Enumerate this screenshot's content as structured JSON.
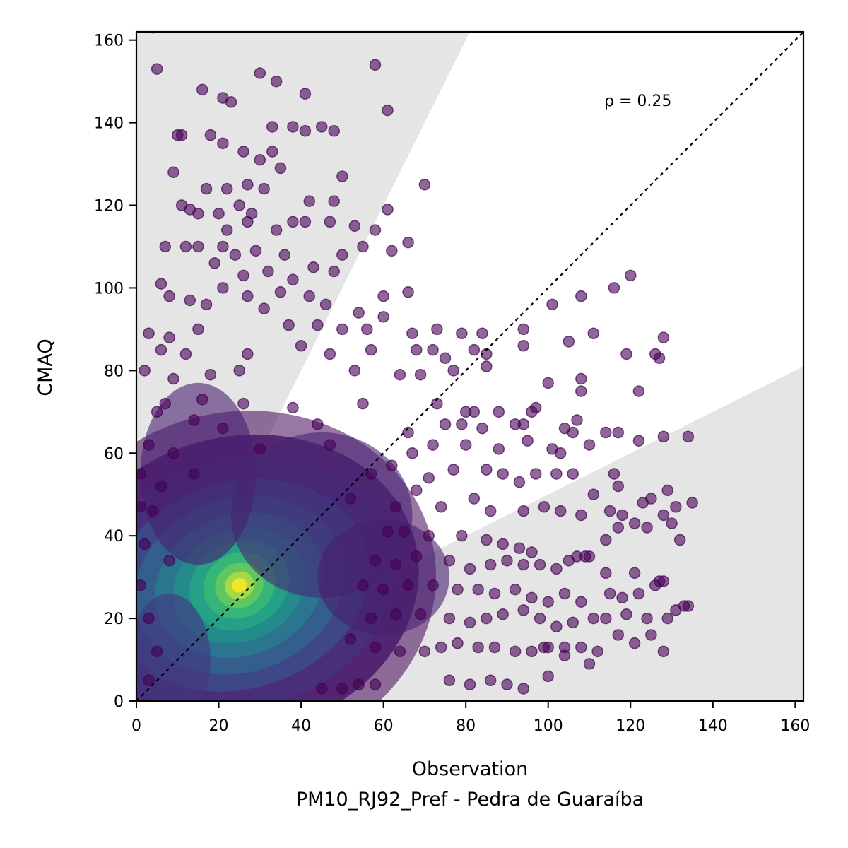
{
  "chart_data": {
    "type": "scatter",
    "title": "",
    "xlabel": "Observation",
    "subtitle": "PM10_RJ92_Pref - Pedra de Guaraíba",
    "ylabel": "CMAQ",
    "xlim": [
      0,
      162
    ],
    "ylim": [
      0,
      162
    ],
    "xticks": [
      0,
      20,
      40,
      60,
      80,
      100,
      120,
      140,
      160
    ],
    "yticks": [
      0,
      20,
      40,
      60,
      80,
      100,
      120,
      140,
      160
    ],
    "xtick_labels": [
      "0",
      "20",
      "40",
      "60",
      "80",
      "100",
      "120",
      "140",
      "160"
    ],
    "ytick_labels": [
      "0",
      "20",
      "40",
      "60",
      "80",
      "100",
      "120",
      "140",
      "160"
    ],
    "grid": false,
    "annotation": "ρ = 0.25",
    "reference_line": "1:1 dashed",
    "shaded_regions": "outside factor-of-2 band (y > 2x and y < x/2)",
    "colormap": "viridis (point density)",
    "density_peak": {
      "x": 25,
      "y": 28
    },
    "colors": {
      "shade": "#e5e5e5",
      "low_density": "#440154",
      "mid_density": "#21918c",
      "high_density": "#fde725"
    },
    "points": [
      [
        4,
        163
      ],
      [
        5,
        153
      ],
      [
        30,
        152
      ],
      [
        34,
        150
      ],
      [
        58,
        154
      ],
      [
        41,
        147
      ],
      [
        61,
        143
      ],
      [
        16,
        148
      ],
      [
        21,
        146
      ],
      [
        23,
        145
      ],
      [
        10,
        137
      ],
      [
        11,
        137
      ],
      [
        18,
        137
      ],
      [
        21,
        135
      ],
      [
        33,
        139
      ],
      [
        38,
        139
      ],
      [
        41,
        138
      ],
      [
        45,
        139
      ],
      [
        48,
        138
      ],
      [
        9,
        128
      ],
      [
        26,
        133
      ],
      [
        30,
        131
      ],
      [
        33,
        133
      ],
      [
        35,
        129
      ],
      [
        27,
        125
      ],
      [
        31,
        124
      ],
      [
        70,
        125
      ],
      [
        50,
        127
      ],
      [
        17,
        124
      ],
      [
        22,
        124
      ],
      [
        11,
        120
      ],
      [
        13,
        119
      ],
      [
        20,
        118
      ],
      [
        25,
        120
      ],
      [
        28,
        118
      ],
      [
        42,
        121
      ],
      [
        48,
        121
      ],
      [
        61,
        119
      ],
      [
        53,
        115
      ],
      [
        58,
        114
      ],
      [
        15,
        118
      ],
      [
        22,
        114
      ],
      [
        27,
        116
      ],
      [
        38,
        116
      ],
      [
        41,
        116
      ],
      [
        47,
        116
      ],
      [
        34,
        114
      ],
      [
        12,
        110
      ],
      [
        15,
        110
      ],
      [
        7,
        110
      ],
      [
        21,
        110
      ],
      [
        24,
        108
      ],
      [
        29,
        109
      ],
      [
        36,
        108
      ],
      [
        50,
        108
      ],
      [
        55,
        110
      ],
      [
        62,
        109
      ],
      [
        66,
        111
      ],
      [
        43,
        105
      ],
      [
        48,
        104
      ],
      [
        19,
        106
      ],
      [
        26,
        103
      ],
      [
        32,
        104
      ],
      [
        38,
        102
      ],
      [
        21,
        100
      ],
      [
        6,
        101
      ],
      [
        27,
        98
      ],
      [
        35,
        99
      ],
      [
        42,
        98
      ],
      [
        60,
        98
      ],
      [
        66,
        99
      ],
      [
        101,
        96
      ],
      [
        108,
        98
      ],
      [
        116,
        100
      ],
      [
        120,
        103
      ],
      [
        13,
        97
      ],
      [
        17,
        96
      ],
      [
        8,
        98
      ],
      [
        31,
        95
      ],
      [
        46,
        96
      ],
      [
        54,
        94
      ],
      [
        60,
        93
      ],
      [
        73,
        90
      ],
      [
        79,
        89
      ],
      [
        84,
        89
      ],
      [
        94,
        90
      ],
      [
        3,
        89
      ],
      [
        8,
        88
      ],
      [
        15,
        90
      ],
      [
        37,
        91
      ],
      [
        44,
        91
      ],
      [
        50,
        90
      ],
      [
        56,
        90
      ],
      [
        67,
        89
      ],
      [
        105,
        87
      ],
      [
        111,
        89
      ],
      [
        128,
        88
      ],
      [
        6,
        85
      ],
      [
        12,
        84
      ],
      [
        27,
        84
      ],
      [
        40,
        86
      ],
      [
        47,
        84
      ],
      [
        57,
        85
      ],
      [
        68,
        85
      ],
      [
        72,
        85
      ],
      [
        75,
        83
      ],
      [
        82,
        85
      ],
      [
        85,
        84
      ],
      [
        94,
        86
      ],
      [
        119,
        84
      ],
      [
        126,
        84
      ],
      [
        127,
        83
      ],
      [
        2,
        80
      ],
      [
        9,
        78
      ],
      [
        18,
        79
      ],
      [
        25,
        80
      ],
      [
        53,
        80
      ],
      [
        64,
        79
      ],
      [
        69,
        79
      ],
      [
        77,
        80
      ],
      [
        85,
        81
      ],
      [
        100,
        77
      ],
      [
        108,
        78
      ],
      [
        108,
        75
      ],
      [
        122,
        75
      ],
      [
        7,
        72
      ],
      [
        16,
        73
      ],
      [
        26,
        72
      ],
      [
        38,
        71
      ],
      [
        55,
        72
      ],
      [
        73,
        72
      ],
      [
        80,
        70
      ],
      [
        82,
        70
      ],
      [
        88,
        70
      ],
      [
        96,
        70
      ],
      [
        97,
        71
      ],
      [
        107,
        68
      ],
      [
        5,
        70
      ],
      [
        14,
        68
      ],
      [
        21,
        66
      ],
      [
        44,
        67
      ],
      [
        66,
        65
      ],
      [
        75,
        67
      ],
      [
        79,
        67
      ],
      [
        84,
        66
      ],
      [
        92,
        67
      ],
      [
        94,
        67
      ],
      [
        104,
        66
      ],
      [
        106,
        65
      ],
      [
        114,
        65
      ],
      [
        117,
        65
      ],
      [
        128,
        64
      ],
      [
        134,
        64
      ],
      [
        3,
        62
      ],
      [
        9,
        60
      ],
      [
        30,
        61
      ],
      [
        47,
        62
      ],
      [
        67,
        60
      ],
      [
        72,
        62
      ],
      [
        80,
        62
      ],
      [
        88,
        61
      ],
      [
        95,
        63
      ],
      [
        101,
        61
      ],
      [
        103,
        60
      ],
      [
        110,
        62
      ],
      [
        116,
        55
      ],
      [
        122,
        63
      ],
      [
        1,
        55
      ],
      [
        6,
        52
      ],
      [
        14,
        55
      ],
      [
        57,
        55
      ],
      [
        62,
        57
      ],
      [
        71,
        54
      ],
      [
        77,
        56
      ],
      [
        85,
        56
      ],
      [
        89,
        55
      ],
      [
        93,
        53
      ],
      [
        97,
        55
      ],
      [
        102,
        55
      ],
      [
        106,
        55
      ],
      [
        111,
        50
      ],
      [
        117,
        52
      ],
      [
        125,
        49
      ],
      [
        129,
        51
      ],
      [
        1,
        47
      ],
      [
        4,
        46
      ],
      [
        52,
        49
      ],
      [
        63,
        47
      ],
      [
        68,
        51
      ],
      [
        74,
        47
      ],
      [
        82,
        49
      ],
      [
        86,
        46
      ],
      [
        94,
        46
      ],
      [
        99,
        47
      ],
      [
        103,
        46
      ],
      [
        108,
        45
      ],
      [
        115,
        46
      ],
      [
        118,
        45
      ],
      [
        123,
        48
      ],
      [
        131,
        47
      ],
      [
        135,
        48
      ],
      [
        2,
        38
      ],
      [
        61,
        41
      ],
      [
        65,
        41
      ],
      [
        71,
        40
      ],
      [
        79,
        40
      ],
      [
        85,
        39
      ],
      [
        89,
        38
      ],
      [
        93,
        37
      ],
      [
        96,
        36
      ],
      [
        107,
        35
      ],
      [
        110,
        35
      ],
      [
        114,
        39
      ],
      [
        117,
        42
      ],
      [
        121,
        43
      ],
      [
        124,
        42
      ],
      [
        128,
        45
      ],
      [
        130,
        43
      ],
      [
        132,
        39
      ],
      [
        8,
        34
      ],
      [
        58,
        34
      ],
      [
        63,
        33
      ],
      [
        68,
        35
      ],
      [
        76,
        34
      ],
      [
        81,
        32
      ],
      [
        86,
        33
      ],
      [
        90,
        34
      ],
      [
        94,
        33
      ],
      [
        98,
        33
      ],
      [
        102,
        32
      ],
      [
        105,
        34
      ],
      [
        109,
        35
      ],
      [
        114,
        31
      ],
      [
        121,
        31
      ],
      [
        126,
        28
      ],
      [
        1,
        28
      ],
      [
        55,
        28
      ],
      [
        60,
        27
      ],
      [
        66,
        28
      ],
      [
        72,
        28
      ],
      [
        78,
        27
      ],
      [
        83,
        27
      ],
      [
        87,
        26
      ],
      [
        92,
        27
      ],
      [
        96,
        25
      ],
      [
        100,
        24
      ],
      [
        104,
        26
      ],
      [
        108,
        24
      ],
      [
        115,
        26
      ],
      [
        118,
        25
      ],
      [
        122,
        26
      ],
      [
        127,
        29
      ],
      [
        128,
        29
      ],
      [
        3,
        20
      ],
      [
        57,
        20
      ],
      [
        63,
        21
      ],
      [
        69,
        21
      ],
      [
        76,
        20
      ],
      [
        81,
        19
      ],
      [
        85,
        20
      ],
      [
        89,
        21
      ],
      [
        94,
        22
      ],
      [
        98,
        20
      ],
      [
        102,
        18
      ],
      [
        106,
        19
      ],
      [
        111,
        20
      ],
      [
        114,
        20
      ],
      [
        119,
        21
      ],
      [
        124,
        20
      ],
      [
        129,
        20
      ],
      [
        131,
        22
      ],
      [
        133,
        23
      ],
      [
        134,
        23
      ],
      [
        5,
        12
      ],
      [
        52,
        15
      ],
      [
        58,
        13
      ],
      [
        64,
        12
      ],
      [
        70,
        12
      ],
      [
        74,
        13
      ],
      [
        78,
        14
      ],
      [
        83,
        13
      ],
      [
        87,
        13
      ],
      [
        92,
        12
      ],
      [
        96,
        12
      ],
      [
        100,
        13
      ],
      [
        104,
        13
      ],
      [
        108,
        13
      ],
      [
        112,
        12
      ],
      [
        117,
        16
      ],
      [
        121,
        14
      ],
      [
        125,
        16
      ],
      [
        128,
        12
      ],
      [
        3,
        5
      ],
      [
        45,
        3
      ],
      [
        50,
        3
      ],
      [
        54,
        4
      ],
      [
        58,
        4
      ],
      [
        76,
        5
      ],
      [
        81,
        4
      ],
      [
        86,
        5
      ],
      [
        90,
        4
      ],
      [
        94,
        3
      ],
      [
        100,
        6
      ],
      [
        104,
        11
      ],
      [
        110,
        9
      ],
      [
        99,
        13
      ]
    ]
  }
}
